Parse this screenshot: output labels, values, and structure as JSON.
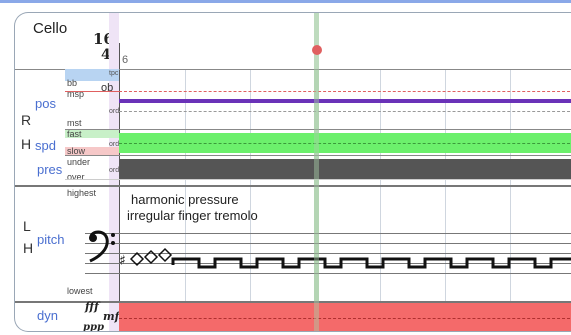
{
  "instrument": {
    "name": "Cello"
  },
  "time_signature": {
    "numerator": "16",
    "denominator": "4"
  },
  "measure_number": "6",
  "rows": {
    "rh_letters": {
      "r": "R",
      "h": "H"
    },
    "pos": {
      "label": "pos",
      "levels": {
        "top": "tpc",
        "bb": "bb",
        "ob": "ob",
        "msp": "msp",
        "ord": "ord",
        "mst": "mst"
      }
    },
    "spd": {
      "label": "spd",
      "levels": {
        "fast": "fast",
        "ord": "ord",
        "slow": "slow"
      }
    },
    "pres": {
      "label": "pres",
      "levels": {
        "under": "under",
        "ord": "ord",
        "over": "over"
      }
    },
    "lh_letters": {
      "l": "L",
      "h": "H"
    },
    "pitch": {
      "label": "pitch",
      "range_high": "highest",
      "range_low": "lowest",
      "annotation_1": "harmonic pressure",
      "annotation_2": "irregular finger tremolo"
    },
    "dyn": {
      "label": "dyn",
      "marks": {
        "fff": "fff",
        "mf": "mf",
        "ppp": "ppp"
      }
    }
  },
  "colors": {
    "playhead": "#a8cfa8",
    "playhead_dot": "#e06060",
    "pos_bar": "#6a32b8",
    "ob_dashed": "#e06060",
    "spd_fill": "#6cf06c",
    "pres_fill": "#555555",
    "dyn_fill": "#f46a6a",
    "selection_col": "#efe4f6"
  }
}
